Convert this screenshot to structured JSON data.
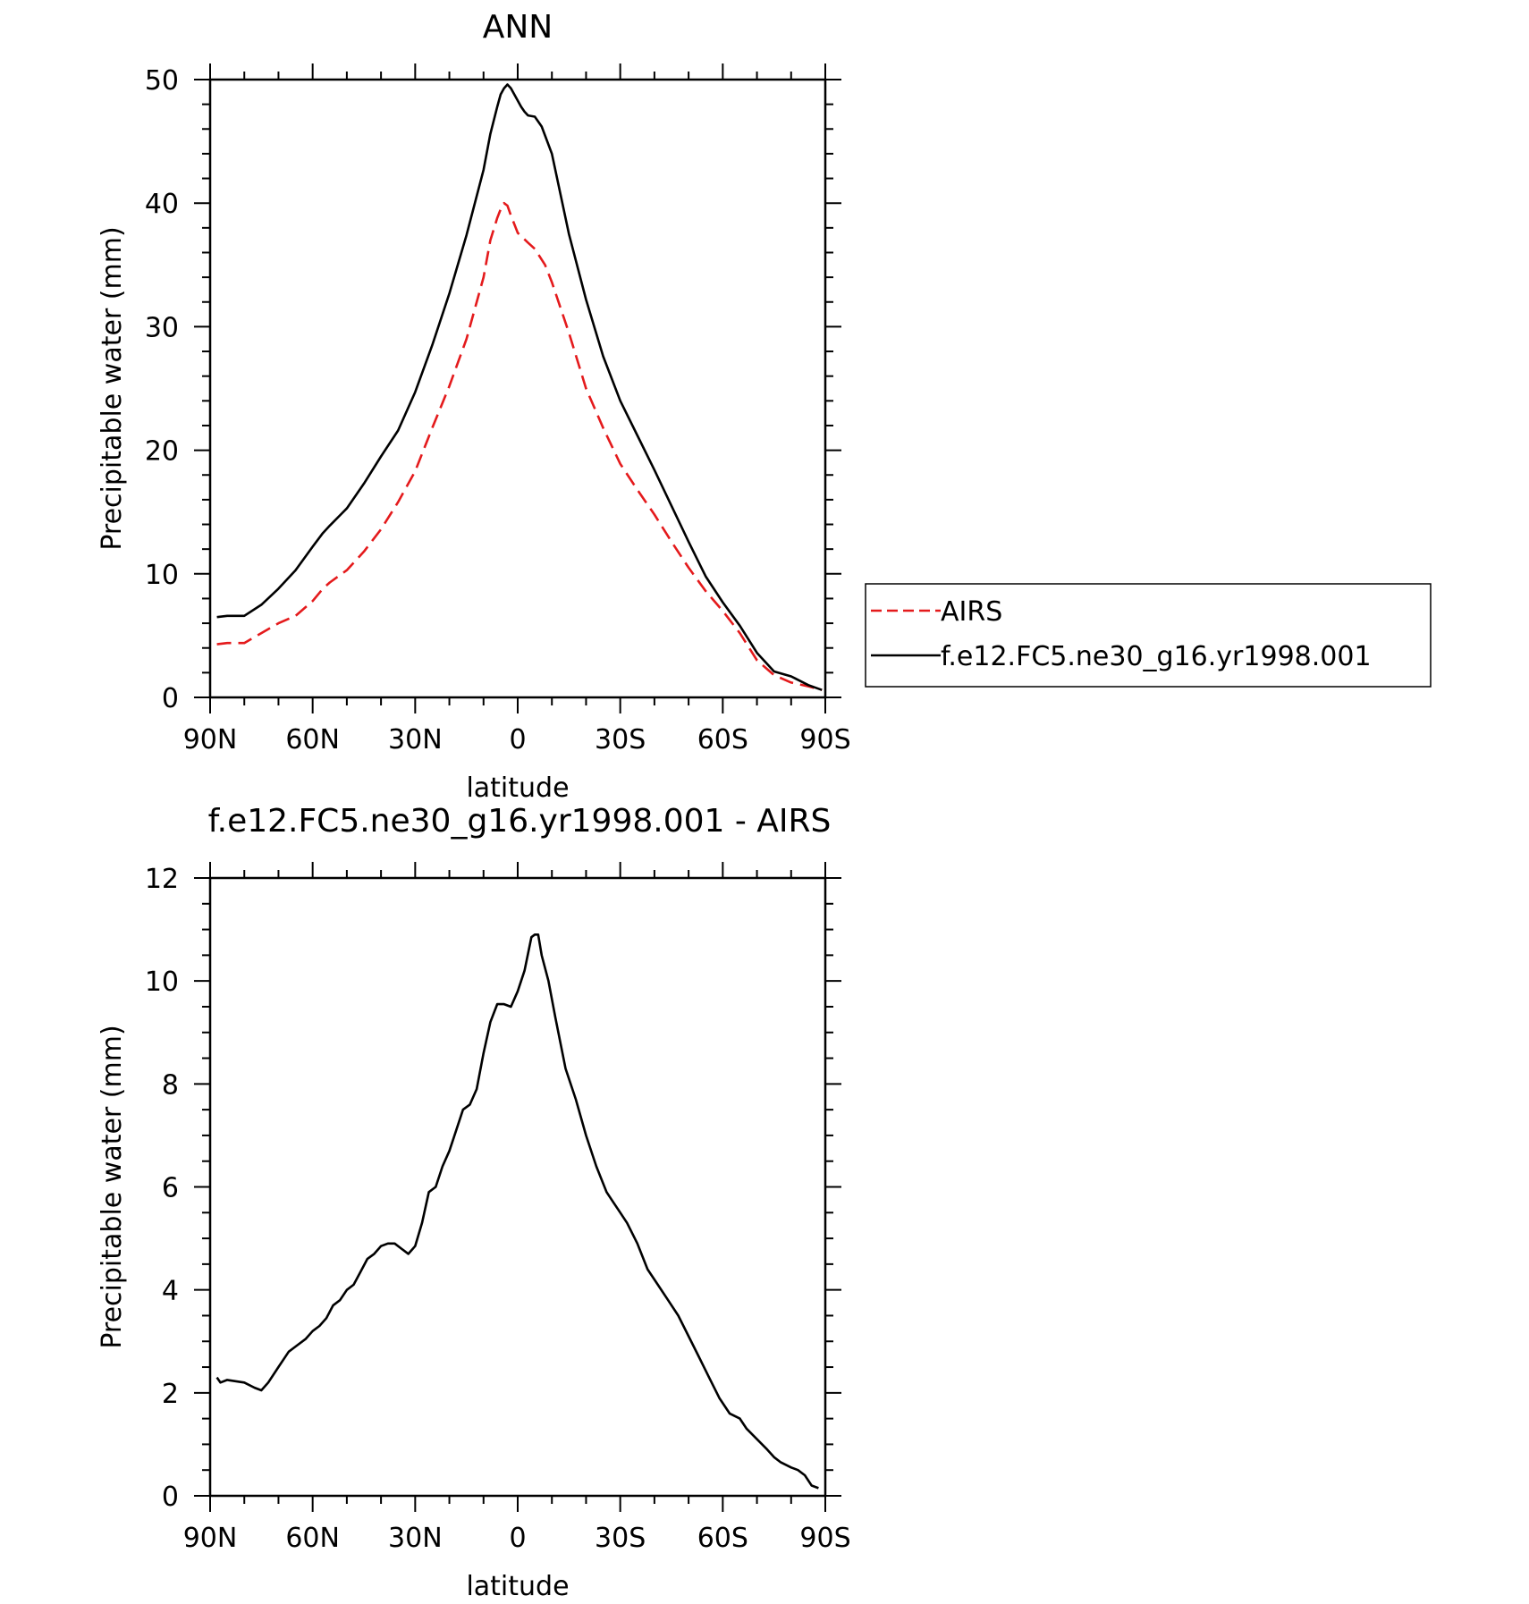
{
  "chart_data": [
    {
      "type": "line",
      "title": "ANN",
      "xlabel": "latitude",
      "ylabel": "Precipitable water (mm)",
      "ylim": [
        0,
        50
      ],
      "yticks": [
        "0",
        "10",
        "20",
        "30",
        "40",
        "50"
      ],
      "xlim": [
        -90,
        90
      ],
      "xticks": [
        {
          "value": -90,
          "label": "90N"
        },
        {
          "value": -60,
          "label": "60N"
        },
        {
          "value": -30,
          "label": "30N"
        },
        {
          "value": 0,
          "label": "0"
        },
        {
          "value": 30,
          "label": "30S"
        },
        {
          "value": 60,
          "label": "60S"
        },
        {
          "value": 90,
          "label": "90S"
        }
      ],
      "legend": {
        "position": "right",
        "entries": [
          {
            "name": "AIRS",
            "color": "#e41a1c",
            "dash": "dashed"
          },
          {
            "name": "f.e12.FC5.ne30_g16.yr1998.001",
            "color": "#000000",
            "dash": "solid"
          }
        ]
      },
      "series": [
        {
          "name": "AIRS",
          "color": "#e41a1c",
          "dash": "dashed",
          "x": [
            -88,
            -85,
            -80,
            -75,
            -70,
            -65,
            -60,
            -57,
            -55,
            -50,
            -45,
            -40,
            -35,
            -30,
            -25,
            -20,
            -15,
            -10,
            -8,
            -6,
            -5,
            -4,
            -3,
            -2,
            0,
            3,
            5,
            8,
            10,
            15,
            20,
            25,
            30,
            35,
            40,
            45,
            50,
            55,
            60,
            65,
            70,
            75,
            80,
            85,
            89
          ],
          "values": [
            4.3,
            4.4,
            4.4,
            5.2,
            6.0,
            6.6,
            7.8,
            8.8,
            9.3,
            10.3,
            11.8,
            13.6,
            15.8,
            18.3,
            21.8,
            25.2,
            29.0,
            34.0,
            37.0,
            38.8,
            39.5,
            40.0,
            39.8,
            39.0,
            37.6,
            36.8,
            36.3,
            35.0,
            33.6,
            29.5,
            25.0,
            21.8,
            18.9,
            16.8,
            14.8,
            12.6,
            10.5,
            8.6,
            7.0,
            5.2,
            3.0,
            1.8,
            1.2,
            0.9,
            0.6
          ]
        },
        {
          "name": "f.e12.FC5.ne30_g16.yr1998.001",
          "color": "#000000",
          "dash": "solid",
          "x": [
            -88,
            -85,
            -80,
            -75,
            -70,
            -65,
            -60,
            -57,
            -55,
            -50,
            -45,
            -40,
            -35,
            -30,
            -25,
            -20,
            -15,
            -10,
            -8,
            -6,
            -5,
            -4,
            -3,
            -2,
            0,
            1,
            2,
            3,
            5,
            7,
            10,
            15,
            20,
            25,
            30,
            35,
            40,
            45,
            50,
            55,
            60,
            65,
            70,
            75,
            80,
            85,
            89
          ],
          "values": [
            6.5,
            6.6,
            6.6,
            7.5,
            8.8,
            10.3,
            12.2,
            13.3,
            13.9,
            15.3,
            17.3,
            19.5,
            21.6,
            24.7,
            28.5,
            32.7,
            37.4,
            42.7,
            45.6,
            47.8,
            48.8,
            49.3,
            49.6,
            49.3,
            48.3,
            47.8,
            47.4,
            47.1,
            47.0,
            46.2,
            44.0,
            37.5,
            32.2,
            27.6,
            24.0,
            21.2,
            18.4,
            15.5,
            12.6,
            9.8,
            7.7,
            5.8,
            3.6,
            2.1,
            1.7,
            1.0,
            0.6
          ]
        }
      ]
    },
    {
      "type": "line",
      "title": "f.e12.FC5.ne30_g16.yr1998.001 - AIRS",
      "xlabel": "latitude",
      "ylabel": "Precipitable water (mm)",
      "ylim": [
        0,
        12
      ],
      "yticks": [
        "0",
        "2",
        "4",
        "6",
        "8",
        "10",
        "12"
      ],
      "xlim": [
        -90,
        90
      ],
      "xticks": [
        {
          "value": -90,
          "label": "90N"
        },
        {
          "value": -60,
          "label": "60N"
        },
        {
          "value": -30,
          "label": "30N"
        },
        {
          "value": 0,
          "label": "0"
        },
        {
          "value": 30,
          "label": "30S"
        },
        {
          "value": 60,
          "label": "60S"
        },
        {
          "value": 90,
          "label": "90S"
        }
      ],
      "series": [
        {
          "name": "f.e12.FC5.ne30_g16.yr1998.001 - AIRS",
          "color": "#000000",
          "dash": "solid",
          "x": [
            -88,
            -87,
            -85,
            -80,
            -77,
            -75,
            -73,
            -70,
            -67,
            -65,
            -62,
            -60,
            -58,
            -56,
            -54,
            -52,
            -50,
            -48,
            -46,
            -44,
            -42,
            -40,
            -38,
            -36,
            -34,
            -32,
            -30,
            -28,
            -26,
            -24,
            -22,
            -20,
            -18,
            -16,
            -14,
            -12,
            -10,
            -8,
            -6,
            -4,
            -2,
            0,
            2,
            4,
            5,
            6,
            7,
            9,
            11,
            14,
            17,
            20,
            23,
            26,
            28,
            30,
            32,
            35,
            38,
            41,
            44,
            47,
            50,
            53,
            56,
            59,
            62,
            65,
            67,
            70,
            73,
            75,
            77,
            80,
            82,
            84,
            86,
            88
          ],
          "values": [
            2.3,
            2.2,
            2.25,
            2.2,
            2.1,
            2.05,
            2.2,
            2.5,
            2.8,
            2.9,
            3.05,
            3.2,
            3.3,
            3.45,
            3.7,
            3.8,
            4.0,
            4.1,
            4.35,
            4.6,
            4.7,
            4.85,
            4.9,
            4.9,
            4.8,
            4.7,
            4.85,
            5.3,
            5.9,
            6.0,
            6.4,
            6.7,
            7.1,
            7.5,
            7.6,
            7.9,
            8.6,
            9.2,
            9.55,
            9.55,
            9.5,
            9.8,
            10.2,
            10.85,
            10.9,
            10.9,
            10.5,
            10.0,
            9.3,
            8.3,
            7.7,
            7.0,
            6.4,
            5.9,
            5.7,
            5.5,
            5.3,
            4.9,
            4.4,
            4.1,
            3.8,
            3.5,
            3.1,
            2.7,
            2.3,
            1.9,
            1.6,
            1.5,
            1.3,
            1.1,
            0.9,
            0.75,
            0.65,
            0.55,
            0.5,
            0.4,
            0.2,
            0.15
          ]
        }
      ]
    }
  ]
}
